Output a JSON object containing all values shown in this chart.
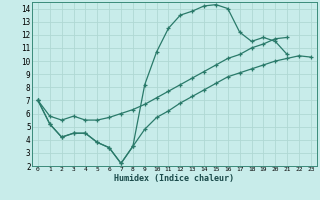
{
  "xlabel": "Humidex (Indice chaleur)",
  "bg_color": "#c8ecea",
  "grid_color": "#b0d8d4",
  "line_color": "#2a7a6a",
  "xlim": [
    -0.5,
    23.5
  ],
  "ylim": [
    2,
    14.5
  ],
  "xticks": [
    0,
    1,
    2,
    3,
    4,
    5,
    6,
    7,
    8,
    9,
    10,
    11,
    12,
    13,
    14,
    15,
    16,
    17,
    18,
    19,
    20,
    21,
    22,
    23
  ],
  "yticks": [
    2,
    3,
    4,
    5,
    6,
    7,
    8,
    9,
    10,
    11,
    12,
    13,
    14
  ],
  "line1_x": [
    0,
    1,
    2,
    3,
    4,
    5,
    6,
    7,
    8,
    9,
    10,
    11,
    12,
    13,
    14,
    15,
    16,
    17,
    18,
    19,
    20,
    21
  ],
  "line1_y": [
    7.0,
    5.2,
    4.2,
    4.5,
    4.5,
    3.8,
    3.4,
    2.2,
    3.5,
    8.2,
    10.7,
    12.5,
    13.5,
    13.8,
    14.2,
    14.3,
    14.0,
    12.2,
    11.5,
    11.8,
    11.5,
    10.5
  ],
  "line2_x": [
    0,
    1,
    2,
    3,
    4,
    5,
    6,
    7,
    8,
    9,
    10,
    11,
    12,
    13,
    14,
    15,
    16,
    17,
    18,
    19,
    20,
    21,
    22,
    23
  ],
  "line2_y": [
    7.0,
    5.2,
    4.2,
    4.5,
    4.5,
    3.8,
    3.4,
    2.2,
    3.5,
    4.8,
    5.7,
    6.2,
    6.8,
    7.3,
    7.8,
    8.3,
    8.8,
    9.1,
    9.4,
    9.7,
    10.0,
    10.2,
    10.4,
    10.3
  ],
  "line3_x": [
    0,
    1,
    2,
    3,
    4,
    5,
    6,
    7,
    8,
    9,
    10,
    11,
    12,
    13,
    14,
    15,
    16,
    17,
    18,
    19,
    20,
    21
  ],
  "line3_y": [
    7.0,
    5.8,
    5.5,
    5.8,
    5.5,
    5.5,
    5.7,
    6.0,
    6.3,
    6.7,
    7.2,
    7.7,
    8.2,
    8.7,
    9.2,
    9.7,
    10.2,
    10.5,
    11.0,
    11.3,
    11.7,
    11.8
  ]
}
